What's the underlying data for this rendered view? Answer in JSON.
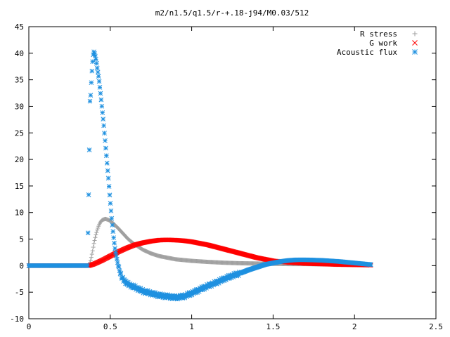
{
  "chart_data": {
    "type": "scatter",
    "title": "m2/n1.5/q1.5/r-+.18-j94/M0.03/512",
    "xlabel": "",
    "ylabel": "",
    "xlim": [
      0,
      2.5
    ],
    "ylim": [
      -10,
      45
    ],
    "xticks": [
      0,
      0.5,
      1,
      1.5,
      2,
      2.5
    ],
    "xtick_labels": [
      "0",
      "0.5",
      "1",
      "1.5",
      "2",
      "2.5"
    ],
    "yticks": [
      -10,
      -5,
      0,
      5,
      10,
      15,
      20,
      25,
      30,
      35,
      40,
      45
    ],
    "ytick_labels": [
      "-10",
      "-5",
      "0",
      "5",
      "10",
      "15",
      "20",
      "25",
      "30",
      "35",
      "40",
      "45"
    ],
    "grid": false,
    "legend_position": "top-right",
    "series": [
      {
        "name": "R stress",
        "marker": "plus",
        "color": "#a0a0a0",
        "x": [
          0,
          0.1,
          0.2,
          0.3,
          0.37,
          0.38,
          0.39,
          0.4,
          0.41,
          0.42,
          0.43,
          0.44,
          0.45,
          0.47,
          0.49,
          0.51,
          0.53,
          0.55,
          0.58,
          0.61,
          0.65,
          0.7,
          0.75,
          0.8,
          0.9,
          1.0,
          1.1,
          1.2,
          1.3,
          1.4,
          1.5,
          1.6,
          1.7,
          1.8,
          1.9,
          2.0,
          2.1
        ],
        "y": [
          0,
          0,
          0,
          0,
          0,
          1.0,
          2.5,
          4.2,
          5.6,
          6.7,
          7.6,
          8.2,
          8.6,
          8.8,
          8.6,
          8.2,
          7.6,
          7.0,
          6.0,
          5.0,
          4.0,
          3.0,
          2.3,
          1.8,
          1.2,
          0.9,
          0.7,
          0.55,
          0.45,
          0.4,
          0.35,
          0.3,
          0.3,
          0.25,
          0.25,
          0.2,
          0.2
        ]
      },
      {
        "name": "G work",
        "marker": "cross",
        "color": "#ff0000",
        "x": [
          0,
          0.1,
          0.2,
          0.3,
          0.37,
          0.4,
          0.45,
          0.5,
          0.55,
          0.6,
          0.65,
          0.7,
          0.75,
          0.8,
          0.85,
          0.9,
          0.95,
          1.0,
          1.05,
          1.1,
          1.15,
          1.2,
          1.25,
          1.3,
          1.35,
          1.4,
          1.45,
          1.5,
          1.6,
          1.7,
          1.8,
          1.9,
          2.0,
          2.1
        ],
        "y": [
          0,
          0,
          0,
          0,
          0,
          0.3,
          1.0,
          1.8,
          2.6,
          3.3,
          3.9,
          4.3,
          4.6,
          4.8,
          4.85,
          4.8,
          4.7,
          4.5,
          4.2,
          3.9,
          3.5,
          3.1,
          2.7,
          2.3,
          1.9,
          1.5,
          1.2,
          0.9,
          0.6,
          0.4,
          0.3,
          0.2,
          0.15,
          0.1
        ]
      },
      {
        "name": "Acoustic flux",
        "marker": "star",
        "color": "#1e90e0",
        "x": [
          0,
          0.1,
          0.2,
          0.3,
          0.36,
          0.37,
          0.375,
          0.38,
          0.385,
          0.39,
          0.395,
          0.4,
          0.405,
          0.41,
          0.415,
          0.42,
          0.43,
          0.44,
          0.45,
          0.46,
          0.47,
          0.48,
          0.49,
          0.5,
          0.51,
          0.52,
          0.53,
          0.55,
          0.57,
          0.6,
          0.63,
          0.66,
          0.7,
          0.75,
          0.8,
          0.85,
          0.9,
          0.95,
          1.0,
          1.05,
          1.1,
          1.15,
          1.2,
          1.25,
          1.3,
          1.35,
          1.4,
          1.45,
          1.5,
          1.55,
          1.6,
          1.65,
          1.7,
          1.75,
          1.8,
          1.85,
          1.9,
          1.95,
          2.0,
          2.05,
          2.1
        ],
        "y": [
          0,
          0,
          0,
          0,
          0,
          17.8,
          30.8,
          32.2,
          35.3,
          37.8,
          39.6,
          40.3,
          39.8,
          39.2,
          38.3,
          37.2,
          35.3,
          32.5,
          29.5,
          26.5,
          23.0,
          19.5,
          16.0,
          12.0,
          8.5,
          5.5,
          3.0,
          -0.2,
          -2.2,
          -3.3,
          -3.8,
          -4.2,
          -4.8,
          -5.2,
          -5.6,
          -5.8,
          -6.0,
          -5.8,
          -5.2,
          -4.5,
          -3.8,
          -3.2,
          -2.5,
          -1.9,
          -1.4,
          -0.8,
          -0.3,
          0.2,
          0.5,
          0.8,
          1.0,
          1.1,
          1.1,
          1.05,
          1.0,
          0.9,
          0.8,
          0.65,
          0.5,
          0.35,
          0.2
        ]
      }
    ]
  }
}
